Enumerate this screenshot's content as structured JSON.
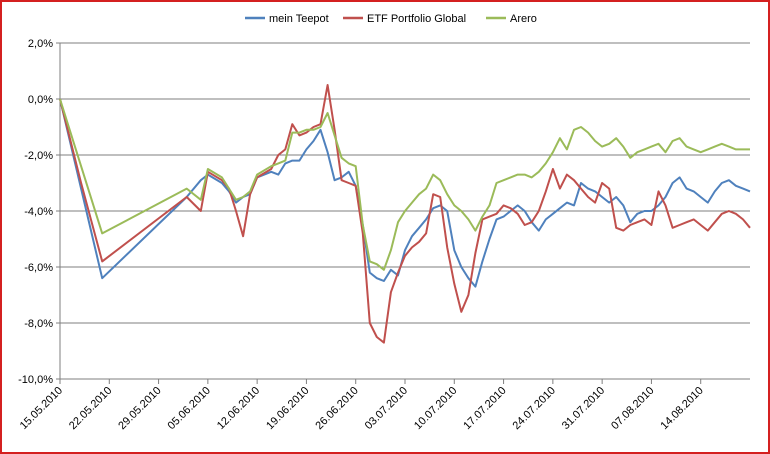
{
  "chart_data": {
    "type": "line",
    "title": "",
    "xlabel": "",
    "ylabel": "",
    "ylim": [
      -0.1,
      0.02
    ],
    "y_ticks": [
      0.02,
      0.0,
      -0.02,
      -0.04,
      -0.06,
      -0.08,
      -0.1
    ],
    "y_tick_labels": [
      "2,0%",
      "0,0%",
      "-2,0%",
      "-4,0%",
      "-6,0%",
      "-8,0%",
      "-10,0%"
    ],
    "x_ticks": [
      "2010-05-15",
      "2010-05-22",
      "2010-05-29",
      "2010-06-05",
      "2010-06-12",
      "2010-06-19",
      "2010-06-26",
      "2010-07-03",
      "2010-07-10",
      "2010-07-17",
      "2010-07-24",
      "2010-07-31",
      "2010-08-07",
      "2010-08-14"
    ],
    "x_tick_labels": [
      "15.05.2010",
      "22.05.2010",
      "29.05.2010",
      "05.06.2010",
      "12.06.2010",
      "19.06.2010",
      "26.06.2010",
      "03.07.2010",
      "10.07.2010",
      "17.07.2010",
      "24.07.2010",
      "31.07.2010",
      "07.08.2010",
      "14.08.2010"
    ],
    "grid": "horizontal",
    "legend_position": "top",
    "x": [
      "2010-05-15",
      "2010-05-18",
      "2010-05-21",
      "2010-06-02",
      "2010-06-04",
      "2010-06-05",
      "2010-06-07",
      "2010-06-08",
      "2010-06-09",
      "2010-06-10",
      "2010-06-11",
      "2010-06-12",
      "2010-06-14",
      "2010-06-15",
      "2010-06-16",
      "2010-06-17",
      "2010-06-18",
      "2010-06-19",
      "2010-06-20",
      "2010-06-21",
      "2010-06-22",
      "2010-06-23",
      "2010-06-24",
      "2010-06-25",
      "2010-06-26",
      "2010-06-27",
      "2010-06-28",
      "2010-06-29",
      "2010-06-30",
      "2010-07-01",
      "2010-07-02",
      "2010-07-03",
      "2010-07-04",
      "2010-07-05",
      "2010-07-06",
      "2010-07-07",
      "2010-07-08",
      "2010-07-09",
      "2010-07-10",
      "2010-07-11",
      "2010-07-12",
      "2010-07-13",
      "2010-07-14",
      "2010-07-15",
      "2010-07-16",
      "2010-07-17",
      "2010-07-18",
      "2010-07-19",
      "2010-07-20",
      "2010-07-21",
      "2010-07-22",
      "2010-07-23",
      "2010-07-24",
      "2010-07-25",
      "2010-07-26",
      "2010-07-27",
      "2010-07-28",
      "2010-07-29",
      "2010-07-30",
      "2010-07-31",
      "2010-08-01",
      "2010-08-02",
      "2010-08-03",
      "2010-08-04",
      "2010-08-05",
      "2010-08-06",
      "2010-08-07",
      "2010-08-08",
      "2010-08-09",
      "2010-08-10",
      "2010-08-11",
      "2010-08-12",
      "2010-08-13",
      "2010-08-14",
      "2010-08-15",
      "2010-08-16",
      "2010-08-17",
      "2010-08-18",
      "2010-08-19",
      "2010-08-20",
      "2010-08-21"
    ],
    "series": [
      {
        "name": "mein Teepot",
        "color": "#4f81bd",
        "values": [
          0.0,
          -0.032,
          -0.064,
          -0.035,
          -0.029,
          -0.027,
          -0.03,
          -0.033,
          -0.037,
          -0.035,
          -0.034,
          -0.028,
          -0.026,
          -0.027,
          -0.023,
          -0.022,
          -0.022,
          -0.018,
          -0.015,
          -0.011,
          -0.019,
          -0.029,
          -0.028,
          -0.026,
          -0.031,
          -0.045,
          -0.062,
          -0.064,
          -0.065,
          -0.061,
          -0.063,
          -0.054,
          -0.049,
          -0.046,
          -0.043,
          -0.039,
          -0.038,
          -0.04,
          -0.054,
          -0.06,
          -0.064,
          -0.067,
          -0.058,
          -0.05,
          -0.043,
          -0.042,
          -0.04,
          -0.038,
          -0.04,
          -0.044,
          -0.047,
          -0.043,
          -0.041,
          -0.039,
          -0.037,
          -0.038,
          -0.03,
          -0.032,
          -0.033,
          -0.035,
          -0.037,
          -0.035,
          -0.038,
          -0.044,
          -0.041,
          -0.04,
          -0.04,
          -0.038,
          -0.035,
          -0.03,
          -0.028,
          -0.032,
          -0.033,
          -0.035,
          -0.037,
          -0.033,
          -0.03,
          -0.029,
          -0.031,
          -0.032,
          -0.033
        ]
      },
      {
        "name": "ETF Portfolio Global",
        "color": "#c0504d",
        "values": [
          0.0,
          -0.03,
          -0.058,
          -0.035,
          -0.04,
          -0.026,
          -0.029,
          -0.032,
          -0.04,
          -0.049,
          -0.034,
          -0.028,
          -0.025,
          -0.02,
          -0.018,
          -0.009,
          -0.013,
          -0.012,
          -0.01,
          -0.009,
          0.005,
          -0.011,
          -0.029,
          -0.03,
          -0.031,
          -0.048,
          -0.08,
          -0.085,
          -0.087,
          -0.069,
          -0.062,
          -0.056,
          -0.053,
          -0.051,
          -0.048,
          -0.034,
          -0.035,
          -0.053,
          -0.066,
          -0.076,
          -0.07,
          -0.055,
          -0.043,
          -0.042,
          -0.041,
          -0.038,
          -0.039,
          -0.041,
          -0.045,
          -0.044,
          -0.04,
          -0.033,
          -0.025,
          -0.032,
          -0.027,
          -0.029,
          -0.032,
          -0.035,
          -0.037,
          -0.03,
          -0.032,
          -0.046,
          -0.047,
          -0.045,
          -0.044,
          -0.043,
          -0.045,
          -0.033,
          -0.038,
          -0.046,
          -0.045,
          -0.044,
          -0.043,
          -0.045,
          -0.047,
          -0.044,
          -0.041,
          -0.04,
          -0.041,
          -0.043,
          -0.046
        ]
      },
      {
        "name": "Arero",
        "color": "#9bbb59",
        "values": [
          0.0,
          -0.024,
          -0.048,
          -0.032,
          -0.036,
          -0.025,
          -0.028,
          -0.032,
          -0.036,
          -0.035,
          -0.033,
          -0.027,
          -0.024,
          -0.023,
          -0.022,
          -0.012,
          -0.012,
          -0.011,
          -0.011,
          -0.01,
          -0.005,
          -0.013,
          -0.021,
          -0.023,
          -0.024,
          -0.045,
          -0.058,
          -0.059,
          -0.061,
          -0.054,
          -0.044,
          -0.04,
          -0.037,
          -0.034,
          -0.032,
          -0.027,
          -0.029,
          -0.034,
          -0.038,
          -0.04,
          -0.043,
          -0.047,
          -0.042,
          -0.038,
          -0.03,
          -0.029,
          -0.028,
          -0.027,
          -0.027,
          -0.028,
          -0.026,
          -0.023,
          -0.019,
          -0.014,
          -0.018,
          -0.011,
          -0.01,
          -0.012,
          -0.015,
          -0.017,
          -0.016,
          -0.014,
          -0.017,
          -0.021,
          -0.019,
          -0.018,
          -0.017,
          -0.016,
          -0.019,
          -0.015,
          -0.014,
          -0.017,
          -0.018,
          -0.019,
          -0.018,
          -0.017,
          -0.016,
          -0.017,
          -0.018,
          -0.018,
          -0.018
        ]
      }
    ]
  }
}
